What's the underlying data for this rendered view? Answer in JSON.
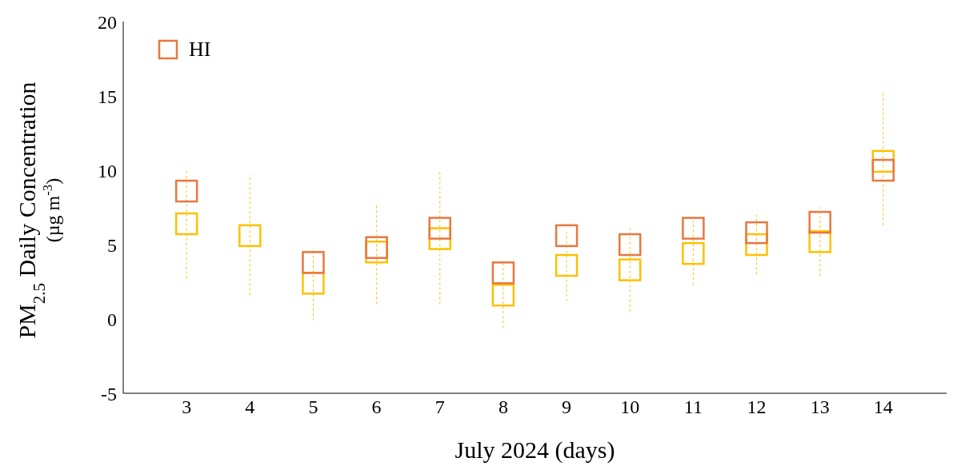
{
  "chart_data": {
    "type": "scatter",
    "xlabel": "July 2024 (days)",
    "ylabel": "PM$_{2.5}$ Daily Concentration\n(µg m$^{-3}$)",
    "categories": [
      "3",
      "4",
      "5",
      "6",
      "7",
      "8",
      "9",
      "10",
      "11",
      "12",
      "13",
      "14"
    ],
    "series": [
      {
        "name": "HI",
        "color": "#e8773f",
        "values": [
          8.6,
          null,
          3.8,
          4.8,
          6.1,
          3.1,
          5.6,
          5.0,
          6.1,
          5.8,
          6.5,
          10.0
        ]
      },
      {
        "color": "#ffc000",
        "values": [
          6.4,
          5.6,
          2.4,
          4.5,
          5.4,
          1.6,
          3.6,
          3.3,
          4.4,
          5.0,
          5.2,
          10.6
        ],
        "errors": [
          [
            2.7,
            10.1
          ],
          [
            1.6,
            9.7
          ],
          [
            -0.1,
            4.8
          ],
          [
            1.0,
            7.8
          ],
          [
            1.0,
            9.9
          ],
          [
            -0.6,
            3.8
          ],
          [
            1.2,
            6.0
          ],
          [
            0.5,
            6.1
          ],
          [
            2.3,
            6.6
          ],
          [
            3.0,
            7.0
          ],
          [
            2.9,
            7.5
          ],
          [
            6.3,
            15.2
          ]
        ],
        "line_style": "dashed"
      }
    ],
    "ylim": [
      -5,
      20
    ],
    "yticks": [
      -5,
      0,
      5,
      10,
      15,
      20
    ],
    "marker": "square",
    "grid": false,
    "legend": "top left"
  }
}
